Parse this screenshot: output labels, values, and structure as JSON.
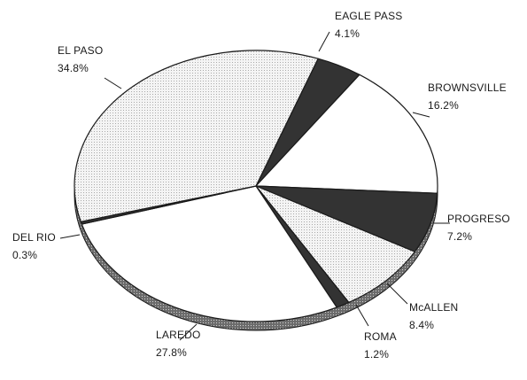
{
  "chart_data": {
    "type": "pie",
    "style": "3d-ellipse",
    "slices": [
      {
        "label": "EAGLE PASS",
        "value": 4.1,
        "value_label": "4.1%",
        "fill": "dark"
      },
      {
        "label": "BROWNSVILLE",
        "value": 16.2,
        "value_label": "16.2%",
        "fill": "white"
      },
      {
        "label": "PROGRESO",
        "value": 7.2,
        "value_label": "7.2%",
        "fill": "dark"
      },
      {
        "label": "McALLEN",
        "value": 8.4,
        "value_label": "8.4%",
        "fill": "dotted"
      },
      {
        "label": "ROMA",
        "value": 1.2,
        "value_label": "1.2%",
        "fill": "dark"
      },
      {
        "label": "LAREDO",
        "value": 27.8,
        "value_label": "27.8%",
        "fill": "white"
      },
      {
        "label": "DEL RIO",
        "value": 0.3,
        "value_label": "0.3%",
        "fill": "dark"
      },
      {
        "label": "EL PASO",
        "value": 34.8,
        "value_label": "34.8%",
        "fill": "dotted"
      }
    ],
    "colors": {
      "dark": "#333333",
      "white": "#ffffff",
      "dotted": "#f1f1f1",
      "edge": "#1a1a1a"
    }
  }
}
